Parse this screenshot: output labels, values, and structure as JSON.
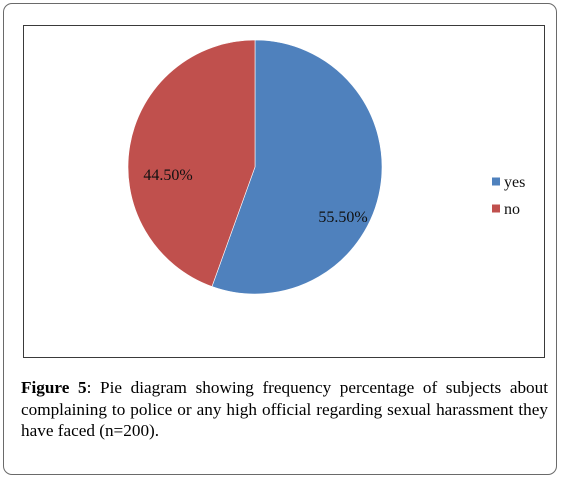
{
  "chart_data": {
    "type": "pie",
    "categories": [
      "yes",
      "no"
    ],
    "values": [
      55.5,
      44.5
    ],
    "data_labels": [
      "55.50%",
      "44.50%"
    ],
    "colors": [
      "#4F81BD",
      "#C0504D"
    ],
    "start_angle": "12 o'clock, clockwise",
    "legend_position": "right"
  },
  "caption": {
    "label": "Figure 5",
    "text": ": Pie diagram showing frequency percentage of subjects about complaining to police or any high official regarding sexual harassment they have faced (n=200)."
  }
}
